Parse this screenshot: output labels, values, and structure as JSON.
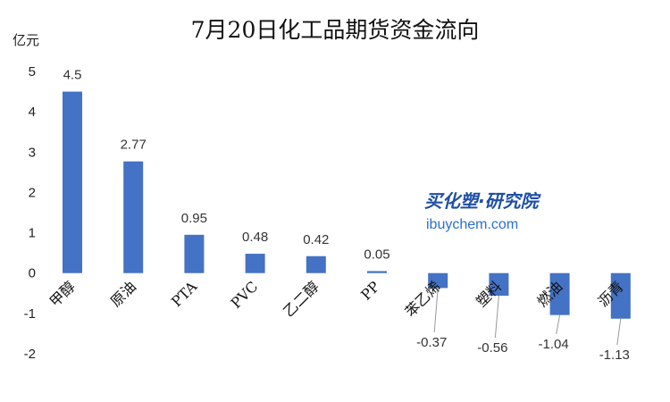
{
  "chart_data": {
    "type": "bar",
    "title": "7月20日化工品期货资金流向",
    "ylabel": "亿元",
    "xlabel": "",
    "ylim": [
      -2,
      5
    ],
    "yticks": [
      5,
      4,
      3,
      2,
      1,
      0,
      -1,
      -2
    ],
    "grid": false,
    "legend": "none",
    "bar_color": "#4472C4",
    "categories": [
      "甲醇",
      "原油",
      "PTA",
      "PVC",
      "乙二醇",
      "PP",
      "苯乙烯",
      "塑料",
      "燃油",
      "沥青"
    ],
    "values": [
      4.5,
      2.77,
      0.95,
      0.48,
      0.42,
      0.05,
      -0.37,
      -0.56,
      -1.04,
      -1.13
    ],
    "data_labels": [
      "4.5",
      "2.77",
      "0.95",
      "0.48",
      "0.42",
      "0.05",
      "-0.37",
      "-0.56",
      "-1.04",
      "-1.13"
    ]
  },
  "watermark": {
    "line1": "买化塑·研究院",
    "line2": "ibuychem.com"
  }
}
